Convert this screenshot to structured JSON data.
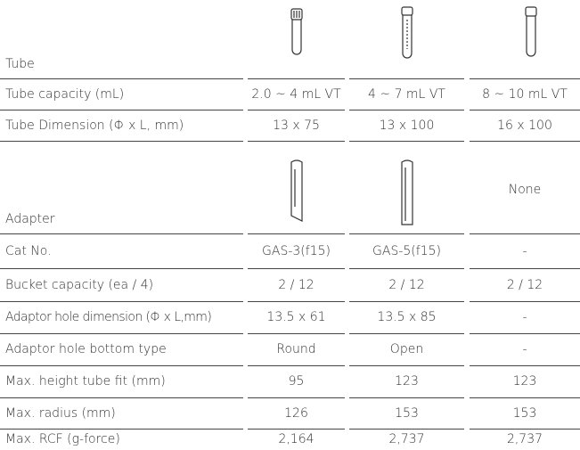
{
  "table": {
    "rows": [
      {
        "label": "Tube"
      },
      {
        "label": "Tube capacity (mL)",
        "cells": [
          "2.0 ~ 4 mL VT",
          "4 ~ 7 mL VT",
          "8 ~ 10 mL VT"
        ]
      },
      {
        "label": "Tube Dimension (Φ x L, mm)",
        "cells": [
          "13 x 75",
          "13 x 100",
          "16 x 100"
        ]
      },
      {
        "label": "Adapter",
        "col3": "None"
      },
      {
        "label": "Cat No.",
        "cells": [
          "GAS-3(f15)",
          "GAS-5(f15)",
          "-"
        ]
      },
      {
        "label": "Bucket capacity (ea / 4)",
        "cells": [
          "2 / 12",
          "2 / 12",
          "2 / 12"
        ]
      },
      {
        "label": "Adaptor hole dimension (Φ x L,mm)",
        "cells": [
          "13.5 x 61",
          "13.5 x 85",
          "-"
        ]
      },
      {
        "label": "Adaptor hole bottom type",
        "cells": [
          "Round",
          "Open",
          "-"
        ]
      },
      {
        "label": "Max. height tube fit (mm)",
        "cells": [
          "95",
          "123",
          "123"
        ]
      },
      {
        "label": "Max. radius (mm)",
        "cells": [
          "126",
          "153",
          "153"
        ]
      },
      {
        "label": "Max. RCF (g-force)",
        "cells": [
          "2,164",
          "2,737",
          "2,737"
        ]
      }
    ]
  }
}
